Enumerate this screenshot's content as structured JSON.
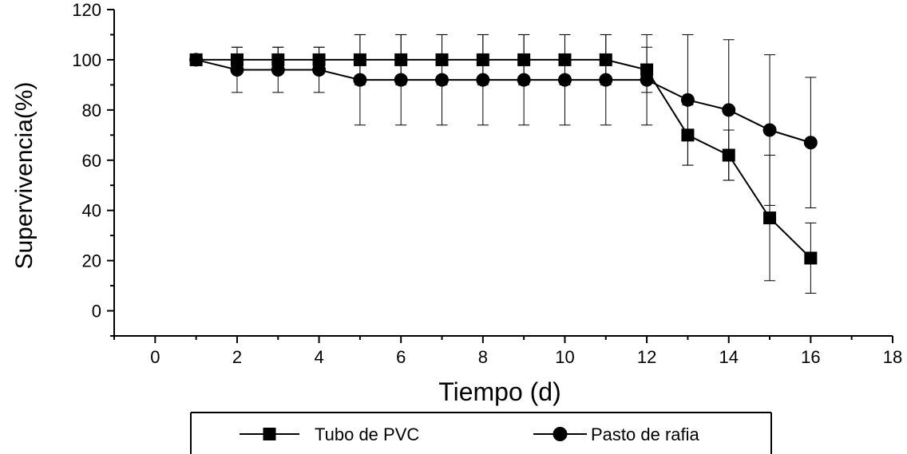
{
  "chart_data": {
    "type": "line",
    "xlabel": "Tiempo (d)",
    "ylabel": "Supervivencia(%)",
    "xlim": [
      -1,
      18
    ],
    "ylim": [
      -10,
      120
    ],
    "x_ticks": [
      0,
      2,
      4,
      6,
      8,
      10,
      12,
      14,
      16,
      18
    ],
    "y_ticks": [
      0,
      20,
      40,
      60,
      80,
      100,
      120
    ],
    "grid": false,
    "legend_position": "bottom",
    "series": [
      {
        "name": "Tubo de PVC",
        "marker": "square",
        "color": "#000000",
        "x": [
          1,
          2,
          3,
          4,
          5,
          6,
          7,
          8,
          9,
          10,
          11,
          12,
          13,
          14,
          15,
          16
        ],
        "y": [
          100,
          100,
          100,
          100,
          100,
          100,
          100,
          100,
          100,
          100,
          100,
          96,
          70,
          62,
          37,
          21
        ],
        "err": [
          0,
          5,
          5,
          5,
          10,
          10,
          10,
          10,
          10,
          10,
          10,
          9,
          12,
          10,
          25,
          14
        ]
      },
      {
        "name": "Pasto de rafia",
        "marker": "circle",
        "color": "#000000",
        "x": [
          1,
          2,
          3,
          4,
          5,
          6,
          7,
          8,
          9,
          10,
          11,
          12,
          13,
          14,
          15,
          16
        ],
        "y": [
          100,
          96,
          96,
          96,
          92,
          92,
          92,
          92,
          92,
          92,
          92,
          92,
          84,
          80,
          72,
          67
        ],
        "err": [
          0,
          9,
          9,
          9,
          18,
          18,
          18,
          18,
          18,
          18,
          18,
          18,
          26,
          28,
          30,
          26
        ]
      }
    ]
  }
}
